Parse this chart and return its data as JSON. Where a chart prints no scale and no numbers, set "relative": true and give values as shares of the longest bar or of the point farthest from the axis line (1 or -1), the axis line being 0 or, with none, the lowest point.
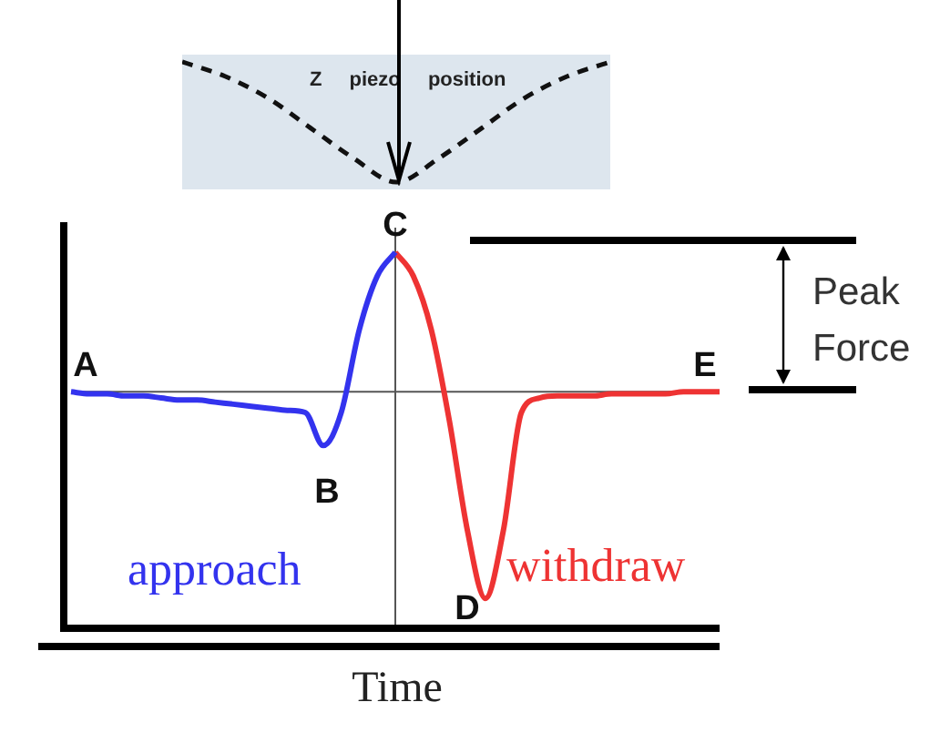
{
  "chart_data": [
    {
      "type": "line",
      "relative": true,
      "xlabel": "Time",
      "categories": [
        null,
        null,
        null,
        null,
        null,
        null,
        null,
        null,
        null,
        null,
        null,
        null,
        null,
        null,
        null,
        null,
        null,
        null,
        null,
        null,
        null,
        null,
        null,
        null,
        null,
        null,
        null,
        null,
        null,
        null,
        null,
        null,
        null,
        null,
        null,
        null,
        null
      ],
      "series": [
        {
          "name": "approach",
          "color": "#3333ee",
          "values": [
            0,
            -0.01,
            -0.01,
            -0.02,
            -0.02,
            -0.03,
            -0.04,
            -0.04,
            -0.05,
            -0.06,
            -0.07,
            -0.08,
            -0.09,
            -0.1,
            -0.26,
            -0.1,
            0.3,
            0.56,
            0.675,
            null,
            null,
            null,
            null,
            null,
            null,
            null,
            null,
            null,
            null,
            null,
            null,
            null,
            null,
            null,
            null,
            null,
            null
          ]
        },
        {
          "name": "withdraw",
          "color": "#ee3333",
          "values": [
            null,
            null,
            null,
            null,
            null,
            null,
            null,
            null,
            null,
            null,
            null,
            null,
            null,
            null,
            null,
            null,
            null,
            null,
            0.675,
            0.56,
            0.3,
            -0.14,
            -0.67,
            -1,
            -0.67,
            -0.1,
            -0.03,
            -0.02,
            -0.02,
            -0.02,
            -0.01,
            -0.01,
            -0.01,
            -0.01,
            0,
            0,
            0
          ]
        }
      ],
      "ref_lines": [
        {
          "axis": "y",
          "value": 0
        }
      ],
      "annotations": [
        "A",
        "B",
        "C",
        "D",
        "E",
        "Peak Force"
      ]
    },
    {
      "type": "line",
      "relative": true,
      "line_style": "dashed",
      "categories": [
        null,
        null,
        null,
        null,
        null,
        null,
        null,
        null,
        null,
        null,
        null
      ],
      "series": [
        {
          "color": "#111111",
          "values": [
            1,
            0.88,
            0.7,
            0.45,
            0.2,
            0,
            0.2,
            0.45,
            0.7,
            0.88,
            1
          ]
        }
      ],
      "annotations": [
        "Z piezo position"
      ]
    }
  ]
}
